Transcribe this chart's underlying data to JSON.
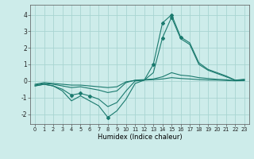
{
  "xlabel": "Humidex (Indice chaleur)",
  "background_color": "#cdecea",
  "grid_color": "#a8d5d1",
  "line_color": "#1a7a6e",
  "xlim": [
    -0.5,
    23.5
  ],
  "ylim": [
    -2.6,
    4.6
  ],
  "xticks": [
    0,
    1,
    2,
    3,
    4,
    5,
    6,
    7,
    8,
    9,
    10,
    11,
    12,
    13,
    14,
    15,
    16,
    17,
    18,
    19,
    20,
    21,
    22,
    23
  ],
  "yticks": [
    -2,
    -1,
    0,
    1,
    2,
    3,
    4
  ],
  "series": [
    {
      "x": [
        0,
        1,
        2,
        3,
        4,
        5,
        6,
        7,
        8,
        9,
        10,
        11,
        12,
        13,
        14,
        15,
        16,
        17,
        18,
        19,
        20,
        21,
        22,
        23
      ],
      "y": [
        -0.3,
        -0.2,
        -0.3,
        -0.6,
        -1.2,
        -0.9,
        -1.2,
        -1.5,
        -2.2,
        -1.8,
        -1.1,
        -0.15,
        0.05,
        1.0,
        3.5,
        4.0,
        2.65,
        2.3,
        1.1,
        0.7,
        0.5,
        0.3,
        0.05,
        0.1
      ],
      "markers": [
        false,
        false,
        false,
        false,
        false,
        false,
        false,
        false,
        true,
        false,
        false,
        false,
        false,
        true,
        true,
        true,
        true,
        false,
        false,
        false,
        false,
        false,
        false,
        false
      ]
    },
    {
      "x": [
        0,
        1,
        2,
        3,
        4,
        5,
        6,
        7,
        8,
        9,
        10,
        11,
        12,
        13,
        14,
        15,
        16,
        17,
        18,
        19,
        20,
        21,
        22,
        23
      ],
      "y": [
        -0.3,
        -0.2,
        -0.3,
        -0.5,
        -0.85,
        -0.75,
        -0.9,
        -1.1,
        -1.55,
        -1.3,
        -0.6,
        0.0,
        0.05,
        0.5,
        2.6,
        3.85,
        2.55,
        2.2,
        1.0,
        0.65,
        0.45,
        0.25,
        0.04,
        0.08
      ],
      "markers": [
        false,
        false,
        false,
        false,
        true,
        true,
        true,
        false,
        false,
        false,
        false,
        false,
        false,
        false,
        true,
        true,
        false,
        false,
        false,
        false,
        false,
        false,
        false,
        false
      ]
    },
    {
      "x": [
        0,
        1,
        2,
        3,
        4,
        5,
        6,
        7,
        8,
        9,
        10,
        11,
        12,
        13,
        14,
        15,
        16,
        17,
        18,
        19,
        20,
        21,
        22,
        23
      ],
      "y": [
        -0.25,
        -0.15,
        -0.2,
        -0.3,
        -0.4,
        -0.35,
        -0.45,
        -0.55,
        -0.7,
        -0.6,
        -0.1,
        0.05,
        0.08,
        0.12,
        0.25,
        0.5,
        0.35,
        0.3,
        0.2,
        0.15,
        0.1,
        0.07,
        0.02,
        0.04
      ],
      "markers": [
        false,
        false,
        false,
        false,
        false,
        false,
        false,
        false,
        false,
        false,
        false,
        false,
        false,
        false,
        false,
        false,
        false,
        false,
        false,
        false,
        false,
        false,
        false,
        false
      ]
    },
    {
      "x": [
        0,
        1,
        2,
        3,
        4,
        5,
        6,
        7,
        8,
        9,
        10,
        11,
        12,
        13,
        14,
        15,
        16,
        17,
        18,
        19,
        20,
        21,
        22,
        23
      ],
      "y": [
        -0.2,
        -0.1,
        -0.15,
        -0.2,
        -0.25,
        -0.25,
        -0.3,
        -0.35,
        -0.4,
        -0.35,
        -0.05,
        0.03,
        0.05,
        0.08,
        0.12,
        0.2,
        0.15,
        0.12,
        0.08,
        0.06,
        0.05,
        0.03,
        0.01,
        0.02
      ],
      "markers": [
        false,
        false,
        false,
        false,
        false,
        false,
        false,
        false,
        false,
        false,
        false,
        false,
        false,
        false,
        false,
        false,
        false,
        false,
        false,
        false,
        false,
        false,
        false,
        false
      ]
    }
  ]
}
